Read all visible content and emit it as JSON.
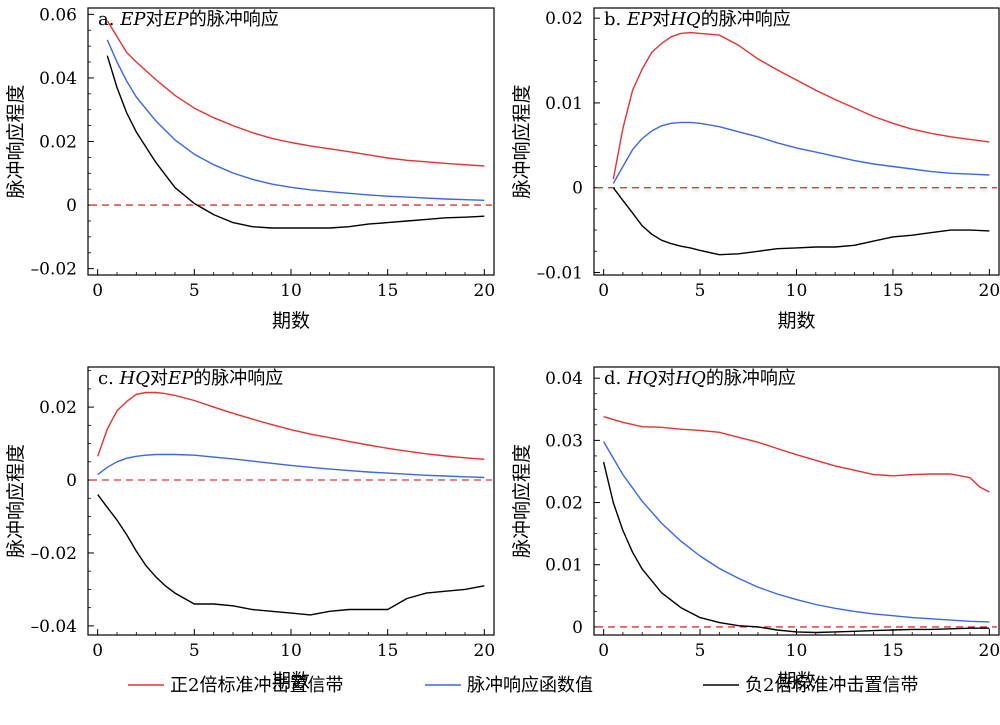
{
  "chart_data": [
    {
      "type": "line",
      "title_parts": [
        "a. ",
        "EP",
        "对",
        "EP",
        "的脉冲响应"
      ],
      "xlabel": "期数",
      "ylabel": "脉冲响应程度",
      "xlim": [
        -0.5,
        20.5
      ],
      "ylim": [
        -0.022,
        0.062
      ],
      "xticks": [
        0,
        5,
        10,
        15,
        20
      ],
      "xtick_labels": [
        "0",
        "5",
        "10",
        "15",
        "20"
      ],
      "yticks": [
        -0.02,
        0,
        0.02,
        0.04,
        0.06
      ],
      "ytick_labels": [
        "–0.02",
        "0",
        "0.02",
        "0.04",
        "0.06"
      ],
      "zero_line": 0,
      "series": [
        {
          "key": "upper",
          "color": "#e8312f",
          "x": [
            0.5,
            1,
            1.5,
            2,
            3,
            4,
            5,
            6,
            7,
            8,
            9,
            10,
            11,
            12,
            13,
            14,
            15,
            16,
            17,
            18,
            19,
            20
          ],
          "values": [
            0.058,
            0.053,
            0.048,
            0.045,
            0.0395,
            0.0345,
            0.0305,
            0.0275,
            0.025,
            0.0228,
            0.021,
            0.0197,
            0.0186,
            0.0177,
            0.0168,
            0.0158,
            0.0148,
            0.0141,
            0.0136,
            0.0131,
            0.0127,
            0.0123
          ]
        },
        {
          "key": "irf",
          "color": "#3a67e6",
          "x": [
            0.5,
            1,
            1.5,
            2,
            3,
            4,
            5,
            6,
            7,
            8,
            9,
            10,
            11,
            12,
            13,
            14,
            15,
            16,
            17,
            18,
            19,
            20
          ],
          "values": [
            0.052,
            0.045,
            0.039,
            0.034,
            0.0265,
            0.0205,
            0.016,
            0.0127,
            0.0101,
            0.0081,
            0.0066,
            0.0056,
            0.0048,
            0.0042,
            0.0037,
            0.0032,
            0.0028,
            0.0025,
            0.0022,
            0.0019,
            0.0017,
            0.0015
          ]
        },
        {
          "key": "lower",
          "color": "#000000",
          "x": [
            0.5,
            1,
            1.5,
            2,
            3,
            4,
            5,
            6,
            7,
            8,
            9,
            10,
            11,
            12,
            13,
            14,
            15,
            16,
            17,
            18,
            19,
            20
          ],
          "values": [
            0.047,
            0.037,
            0.029,
            0.023,
            0.0135,
            0.0055,
            0.0005,
            -0.003,
            -0.0055,
            -0.0068,
            -0.0072,
            -0.0072,
            -0.0072,
            -0.0072,
            -0.0068,
            -0.006,
            -0.0055,
            -0.005,
            -0.0045,
            -0.004,
            -0.0038,
            -0.0035
          ]
        }
      ]
    },
    {
      "type": "line",
      "title_parts": [
        "b. ",
        "EP",
        "对",
        "HQ",
        "的脉冲响应"
      ],
      "xlabel": "期数",
      "ylabel": "脉冲响应程度",
      "xlim": [
        -0.5,
        20.5
      ],
      "ylim": [
        -0.0103,
        0.0212
      ],
      "xticks": [
        0,
        5,
        10,
        15,
        20
      ],
      "xtick_labels": [
        "0",
        "5",
        "10",
        "15",
        "20"
      ],
      "yticks": [
        -0.01,
        0,
        0.01,
        0.02
      ],
      "ytick_labels": [
        "–0.01",
        "0",
        "0.01",
        "0.02"
      ],
      "zero_line": 0,
      "series": [
        {
          "key": "upper",
          "color": "#e8312f",
          "x": [
            0.5,
            1,
            1.5,
            2,
            2.5,
            3,
            3.5,
            4,
            4.5,
            5,
            6,
            7,
            8,
            9,
            10,
            11,
            12,
            13,
            14,
            15,
            16,
            17,
            18,
            19,
            20
          ],
          "values": [
            0.001,
            0.007,
            0.0115,
            0.014,
            0.016,
            0.017,
            0.0178,
            0.0182,
            0.0183,
            0.0182,
            0.018,
            0.0168,
            0.0152,
            0.0139,
            0.0127,
            0.0115,
            0.0104,
            0.0094,
            0.0084,
            0.0076,
            0.0069,
            0.0064,
            0.006,
            0.0057,
            0.0054
          ]
        },
        {
          "key": "irf",
          "color": "#3a67e6",
          "x": [
            0.5,
            1,
            1.5,
            2,
            2.5,
            3,
            3.5,
            4,
            4.5,
            5,
            6,
            7,
            8,
            9,
            10,
            11,
            12,
            13,
            14,
            15,
            16,
            17,
            18,
            19,
            20
          ],
          "values": [
            0.0005,
            0.0025,
            0.0045,
            0.0058,
            0.0067,
            0.0073,
            0.0076,
            0.0077,
            0.0077,
            0.0076,
            0.0072,
            0.0066,
            0.006,
            0.0053,
            0.0047,
            0.0042,
            0.0037,
            0.0032,
            0.0028,
            0.0025,
            0.0022,
            0.0019,
            0.0017,
            0.0016,
            0.0015
          ]
        },
        {
          "key": "lower",
          "color": "#000000",
          "x": [
            0.5,
            1,
            1.5,
            2,
            2.5,
            3,
            3.5,
            4,
            4.5,
            5,
            6,
            7,
            8,
            9,
            10,
            11,
            12,
            13,
            14,
            15,
            16,
            17,
            18,
            19,
            20
          ],
          "values": [
            0.0,
            -0.0015,
            -0.003,
            -0.0045,
            -0.0055,
            -0.0062,
            -0.0066,
            -0.0069,
            -0.0071,
            -0.0074,
            -0.0079,
            -0.0078,
            -0.0075,
            -0.0072,
            -0.0071,
            -0.007,
            -0.007,
            -0.0068,
            -0.0063,
            -0.0058,
            -0.0056,
            -0.0053,
            -0.005,
            -0.005,
            -0.0051
          ]
        }
      ]
    },
    {
      "type": "line",
      "title_parts": [
        "c. ",
        "HQ",
        "对",
        "EP",
        "的脉冲响应"
      ],
      "xlabel": "期数",
      "ylabel": "脉冲响应程度",
      "xlim": [
        -0.5,
        20.5
      ],
      "ylim": [
        -0.0425,
        0.031
      ],
      "xticks": [
        0,
        5,
        10,
        15,
        20
      ],
      "xtick_labels": [
        "0",
        "5",
        "10",
        "15",
        "20"
      ],
      "yticks": [
        -0.04,
        -0.02,
        0,
        0.02
      ],
      "ytick_labels": [
        "–0.04",
        "–0.02",
        "0",
        "0.02"
      ],
      "zero_line": 0,
      "series": [
        {
          "key": "upper",
          "color": "#e8312f",
          "x": [
            0,
            0.5,
            1,
            1.5,
            2,
            2.5,
            3,
            3.5,
            4,
            5,
            6,
            7,
            8,
            9,
            10,
            11,
            12,
            13,
            14,
            15,
            16,
            17,
            18,
            19,
            20
          ],
          "values": [
            0.0065,
            0.014,
            0.019,
            0.0215,
            0.0235,
            0.024,
            0.024,
            0.0237,
            0.0232,
            0.0218,
            0.02,
            0.0183,
            0.0167,
            0.0152,
            0.0138,
            0.0126,
            0.0116,
            0.0106,
            0.0096,
            0.0087,
            0.0079,
            0.0072,
            0.0066,
            0.0061,
            0.0057
          ]
        },
        {
          "key": "irf",
          "color": "#3a67e6",
          "x": [
            0,
            0.5,
            1,
            1.5,
            2,
            2.5,
            3,
            3.5,
            4,
            5,
            6,
            7,
            8,
            9,
            10,
            11,
            12,
            13,
            14,
            15,
            16,
            17,
            18,
            19,
            20
          ],
          "values": [
            0.0015,
            0.0035,
            0.005,
            0.006,
            0.0065,
            0.0068,
            0.007,
            0.007,
            0.007,
            0.0068,
            0.0063,
            0.0058,
            0.0052,
            0.0046,
            0.004,
            0.0035,
            0.003,
            0.0026,
            0.0022,
            0.0019,
            0.0016,
            0.0013,
            0.0011,
            0.0009,
            0.0007
          ]
        },
        {
          "key": "lower",
          "color": "#000000",
          "x": [
            0,
            0.5,
            1,
            1.5,
            2,
            2.5,
            3,
            3.5,
            4,
            5,
            6,
            7,
            8,
            9,
            10,
            11,
            12,
            13,
            14,
            15,
            16,
            17,
            18,
            19,
            20
          ],
          "values": [
            -0.004,
            -0.0075,
            -0.011,
            -0.015,
            -0.0195,
            -0.0235,
            -0.0265,
            -0.029,
            -0.031,
            -0.034,
            -0.034,
            -0.0345,
            -0.0355,
            -0.036,
            -0.0365,
            -0.037,
            -0.036,
            -0.0355,
            -0.0355,
            -0.0355,
            -0.0325,
            -0.031,
            -0.0305,
            -0.03,
            -0.029
          ]
        }
      ]
    },
    {
      "type": "line",
      "title_parts": [
        "d. ",
        "HQ",
        "对",
        "HQ",
        "的脉冲响应"
      ],
      "xlabel": "期数",
      "ylabel": "脉冲响应程度",
      "xlim": [
        -0.5,
        20.5
      ],
      "ylim": [
        -0.0013,
        0.0418
      ],
      "xticks": [
        0,
        5,
        10,
        15,
        20
      ],
      "xtick_labels": [
        "0",
        "5",
        "10",
        "15",
        "20"
      ],
      "yticks": [
        0,
        0.01,
        0.02,
        0.03,
        0.04
      ],
      "ytick_labels": [
        "0",
        "0.01",
        "0.02",
        "0.03",
        "0.04"
      ],
      "zero_line": 0,
      "series": [
        {
          "key": "upper",
          "color": "#e8312f",
          "x": [
            0,
            1,
            2,
            3,
            4,
            5,
            6,
            7,
            8,
            9,
            10,
            11,
            12,
            13,
            14,
            15,
            16,
            17,
            18,
            19,
            19.5,
            20
          ],
          "values": [
            0.0338,
            0.0329,
            0.0322,
            0.0321,
            0.0318,
            0.0316,
            0.0313,
            0.0305,
            0.0297,
            0.0287,
            0.0277,
            0.0268,
            0.0259,
            0.0252,
            0.0245,
            0.0243,
            0.0245,
            0.0246,
            0.0246,
            0.024,
            0.0225,
            0.0217
          ]
        },
        {
          "key": "irf",
          "color": "#3a67e6",
          "x": [
            0,
            1,
            2,
            3,
            4,
            5,
            6,
            7,
            8,
            9,
            10,
            11,
            12,
            13,
            14,
            15,
            16,
            17,
            18,
            19,
            20
          ],
          "values": [
            0.0298,
            0.0245,
            0.0202,
            0.0167,
            0.0138,
            0.0114,
            0.0094,
            0.0078,
            0.0064,
            0.0053,
            0.0044,
            0.0036,
            0.003,
            0.0025,
            0.0021,
            0.0018,
            0.0015,
            0.0013,
            0.0011,
            0.0009,
            0.0008
          ]
        },
        {
          "key": "lower",
          "color": "#000000",
          "x": [
            0,
            0.5,
            1,
            1.5,
            2,
            3,
            4,
            5,
            6,
            7,
            8,
            9,
            10,
            11,
            12,
            13,
            14,
            15,
            16,
            17,
            18,
            19,
            20
          ],
          "values": [
            0.0265,
            0.02,
            0.0155,
            0.012,
            0.0093,
            0.0055,
            0.0031,
            0.0015,
            0.0007,
            0.0002,
            0.0,
            -0.0005,
            -0.0008,
            -0.0009,
            -0.0008,
            -0.0007,
            -0.0006,
            -0.0005,
            -0.0004,
            -0.0004,
            -0.0003,
            -0.0002,
            -0.0002
          ]
        }
      ]
    }
  ],
  "legend": [
    {
      "key": "upper",
      "label": "正2倍标准冲击置信带",
      "color": "#e8312f"
    },
    {
      "key": "irf",
      "label": "脉冲响应函数值",
      "color": "#3a67e6"
    },
    {
      "key": "lower",
      "label": "负2倍标准冲击置信带",
      "color": "#000000"
    }
  ],
  "zero_line_color": "#e8312f"
}
